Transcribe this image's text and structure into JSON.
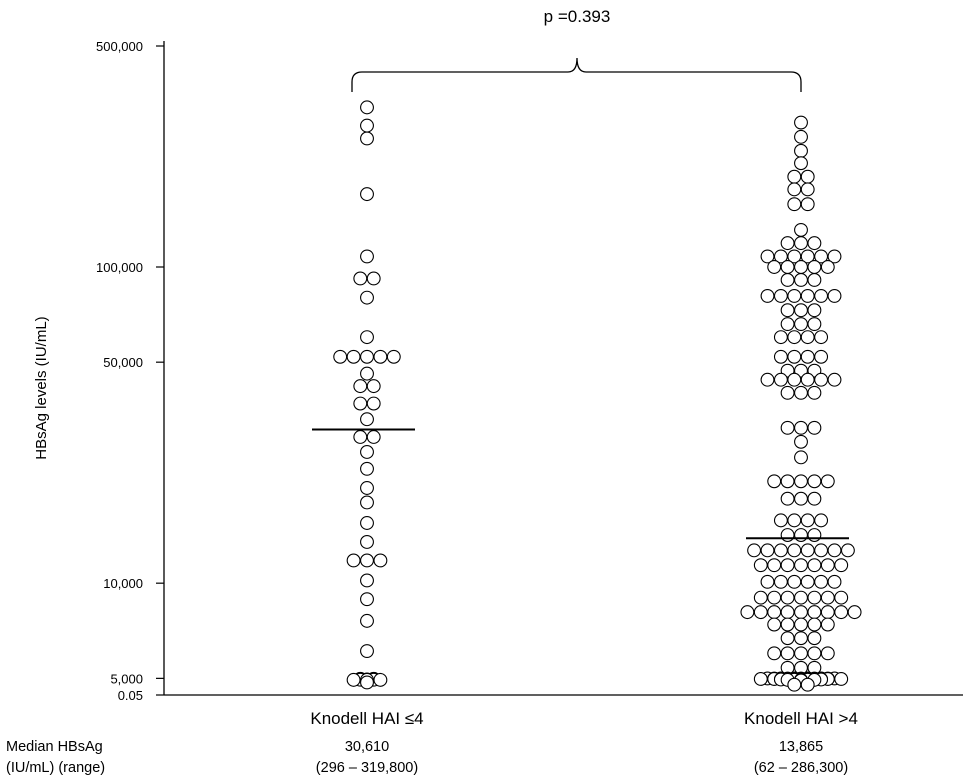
{
  "chart_data": {
    "type": "scatter",
    "ylabel": "HBsAg levels (IU/mL)",
    "yscale": "log",
    "y_ticks": [
      {
        "value": 500000,
        "label": "500,000"
      },
      {
        "value": 100000,
        "label": "100,000"
      },
      {
        "value": 50000,
        "label": "50,000"
      },
      {
        "value": 10000,
        "label": "10,000"
      },
      {
        "value": 5000,
        "label": "5,000"
      },
      {
        "value": 0.05,
        "label": "0.05"
      }
    ],
    "annotation": "p =0.393",
    "footer_label_line1": "Median HBsAg",
    "footer_label_line2": "(IU/mL) (range)",
    "groups": [
      {
        "name": "Knodell HAI ≤4",
        "median": 30610,
        "median_label": "30,610",
        "range_label": "(296 – 319,800)",
        "rows": [
          {
            "y": 319800,
            "n": 1
          },
          {
            "y": 280000,
            "n": 1
          },
          {
            "y": 255000,
            "n": 1
          },
          {
            "y": 170000,
            "n": 1
          },
          {
            "y": 108000,
            "n": 1
          },
          {
            "y": 92000,
            "n": 2
          },
          {
            "y": 80000,
            "n": 1
          },
          {
            "y": 60000,
            "n": 1
          },
          {
            "y": 52000,
            "n": 5
          },
          {
            "y": 46000,
            "n": 1
          },
          {
            "y": 42000,
            "n": 2
          },
          {
            "y": 37000,
            "n": 2
          },
          {
            "y": 33000,
            "n": 1
          },
          {
            "y": 29000,
            "n": 2
          },
          {
            "y": 26000,
            "n": 1
          },
          {
            "y": 23000,
            "n": 1
          },
          {
            "y": 20000,
            "n": 1
          },
          {
            "y": 18000,
            "n": 1
          },
          {
            "y": 15500,
            "n": 1
          },
          {
            "y": 13500,
            "n": 1
          },
          {
            "y": 11800,
            "n": 3
          },
          {
            "y": 10200,
            "n": 1
          },
          {
            "y": 8900,
            "n": 1
          },
          {
            "y": 7600,
            "n": 1
          },
          {
            "y": 6100,
            "n": 1
          },
          {
            "y": 3700,
            "n": 2
          },
          {
            "y": 3200,
            "n": 2
          },
          {
            "y": 2300,
            "n": 1
          },
          {
            "y": 2000,
            "n": 2
          },
          {
            "y": 1750,
            "n": 3
          },
          {
            "y": 296,
            "n": 1
          }
        ]
      },
      {
        "name": "Knodell HAI >4",
        "median": 13865,
        "median_label": "13,865",
        "range_label": "(62 – 286,300)",
        "rows": [
          {
            "y": 286300,
            "n": 1
          },
          {
            "y": 258000,
            "n": 1
          },
          {
            "y": 233000,
            "n": 1
          },
          {
            "y": 213000,
            "n": 1
          },
          {
            "y": 193000,
            "n": 2
          },
          {
            "y": 176000,
            "n": 2
          },
          {
            "y": 158000,
            "n": 2
          },
          {
            "y": 131000,
            "n": 1
          },
          {
            "y": 119000,
            "n": 3
          },
          {
            "y": 108000,
            "n": 6
          },
          {
            "y": 100000,
            "n": 5
          },
          {
            "y": 91000,
            "n": 3
          },
          {
            "y": 81000,
            "n": 6
          },
          {
            "y": 73000,
            "n": 3
          },
          {
            "y": 66000,
            "n": 3
          },
          {
            "y": 60000,
            "n": 4
          },
          {
            "y": 52000,
            "n": 4
          },
          {
            "y": 47000,
            "n": 3
          },
          {
            "y": 44000,
            "n": 6
          },
          {
            "y": 40000,
            "n": 3
          },
          {
            "y": 31000,
            "n": 3
          },
          {
            "y": 28000,
            "n": 1
          },
          {
            "y": 25000,
            "n": 1
          },
          {
            "y": 21000,
            "n": 5
          },
          {
            "y": 18500,
            "n": 3
          },
          {
            "y": 15800,
            "n": 4
          },
          {
            "y": 14200,
            "n": 3
          },
          {
            "y": 12700,
            "n": 8
          },
          {
            "y": 11400,
            "n": 7
          },
          {
            "y": 10100,
            "n": 6
          },
          {
            "y": 9000,
            "n": 7
          },
          {
            "y": 8100,
            "n": 9
          },
          {
            "y": 7400,
            "n": 5
          },
          {
            "y": 6700,
            "n": 3
          },
          {
            "y": 6000,
            "n": 5
          },
          {
            "y": 5400,
            "n": 3
          },
          {
            "y": 4700,
            "n": 6
          },
          {
            "y": 4200,
            "n": 5
          },
          {
            "y": 3750,
            "n": 5
          },
          {
            "y": 3300,
            "n": 7
          },
          {
            "y": 2750,
            "n": 4
          },
          {
            "y": 2300,
            "n": 4
          },
          {
            "y": 2000,
            "n": 2
          },
          {
            "y": 1750,
            "n": 3
          },
          {
            "y": 1550,
            "n": 1
          },
          {
            "y": 1350,
            "n": 1
          },
          {
            "y": 1180,
            "n": 1
          },
          {
            "y": 62,
            "n": 2
          }
        ]
      }
    ]
  }
}
